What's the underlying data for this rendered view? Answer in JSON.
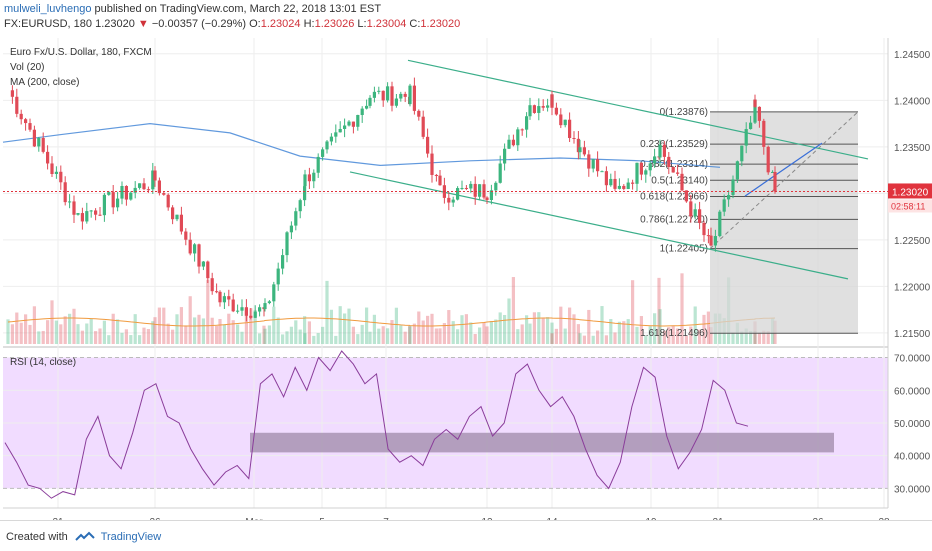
{
  "header": {
    "author": "mulweli_luvhengo",
    "published": "published on TradingView.com, March 22, 2018 13:01 EST",
    "symbol": "FX:EURUSD, 180",
    "close": "1.23020",
    "arrow": "▼",
    "change": "−0.00357 (−0.29%)",
    "o_label": "O:",
    "o_value": "1.23024",
    "h_label": "H:",
    "h_value": "1.23026",
    "l_label": "L:",
    "l_value": "1.23004",
    "c_label": "C:",
    "c_value": "1.23020"
  },
  "legend": {
    "line1": "Euro Fx/U.S. Dollar, 180, FXCM",
    "line2": "Vol (20)",
    "line3": "MA (200, close)",
    "rsi": "RSI (14, close)"
  },
  "footer": {
    "created": "Created with",
    "brand": "TradingView"
  },
  "colors": {
    "up": "#3cb57e",
    "down": "#e04a56",
    "ma": "#3a7fd5",
    "channel": "#3bae8a",
    "rsi_line": "#8a3d9a",
    "rsi_bg": "#f1dcff",
    "fib_zone": "#d6d6d6",
    "price_label": "#e0333d",
    "rsi_zone": "#9e8aa8"
  },
  "chart_data": [
    {
      "type": "candlestick",
      "title": "Euro Fx/U.S. Dollar, 180, FXCM",
      "y_ticks": [
        "1.24500",
        "1.24000",
        "1.23500",
        "1.23000",
        "1.22500",
        "1.22000",
        "1.21500"
      ],
      "ylim": [
        1.2138,
        1.2467
      ],
      "x_ticks": [
        "21",
        "26",
        "Mar",
        "5",
        "7",
        "12",
        "14",
        "19",
        "21",
        "26",
        "28"
      ],
      "last_price": "1.23020",
      "countdown": "02:58:11",
      "moving_average": {
        "name": "MA (200, close)"
      },
      "volume": {
        "name": "Vol (20)"
      },
      "fib_levels": [
        {
          "label": "0(1.23876)",
          "value": 1.23876
        },
        {
          "label": "0.236(1.23529)",
          "value": 1.23529
        },
        {
          "label": "0.382(1.23314)",
          "value": 1.23314
        },
        {
          "label": "0.5(1.23140)",
          "value": 1.2314
        },
        {
          "label": "0.618(1.22966)",
          "value": 1.22966
        },
        {
          "label": "0.786(1.22720)",
          "value": 1.2272
        },
        {
          "label": "1(1.22405)",
          "value": 1.22405
        },
        {
          "label": "1.618(1.21496)",
          "value": 1.21496
        }
      ],
      "key_points": [
        {
          "x": "Feb 20",
          "y": 1.2411
        },
        {
          "x": "Feb 22",
          "y": 1.2275
        },
        {
          "x": "Feb 26",
          "y": 1.2315
        },
        {
          "x": "Feb 28",
          "y": 1.2185
        },
        {
          "x": "Mar 1",
          "y": 1.2172
        },
        {
          "x": "Mar 2",
          "y": 1.2315
        },
        {
          "x": "Mar 6",
          "y": 1.2405
        },
        {
          "x": "Mar 8",
          "y": 1.2405
        },
        {
          "x": "Mar 9",
          "y": 1.23
        },
        {
          "x": "Mar 12",
          "y": 1.2303
        },
        {
          "x": "Mar 13",
          "y": 1.2395
        },
        {
          "x": "Mar 14",
          "y": 1.24
        },
        {
          "x": "Mar 15",
          "y": 1.235
        },
        {
          "x": "Mar 16",
          "y": 1.23
        },
        {
          "x": "Mar 19",
          "y": 1.235
        },
        {
          "x": "Mar 20",
          "y": 1.224
        },
        {
          "x": "Mar 21",
          "y": 1.239
        },
        {
          "x": "Mar 22",
          "y": 1.2302
        }
      ]
    },
    {
      "type": "line",
      "title": "RSI (14, close)",
      "y_ticks": [
        "70.0000",
        "60.0000",
        "50.0000",
        "40.0000",
        "30.0000"
      ],
      "ylim": [
        24,
        72
      ],
      "series": [
        {
          "name": "RSI (14, close)",
          "values": [
            44,
            38,
            31,
            30,
            27,
            29,
            28,
            45,
            52,
            40,
            36,
            47,
            60,
            62,
            52,
            50,
            42,
            36,
            31,
            35,
            37,
            33,
            62,
            65,
            58,
            67,
            60,
            70,
            66,
            72,
            68,
            62,
            65,
            42,
            38,
            40,
            37,
            45,
            48,
            45,
            52,
            55,
            46,
            50,
            65,
            68,
            60,
            55,
            58,
            52,
            42,
            34,
            30,
            38,
            55,
            67,
            64,
            46,
            36,
            41,
            48,
            63,
            60,
            50,
            49
          ]
        }
      ]
    }
  ]
}
